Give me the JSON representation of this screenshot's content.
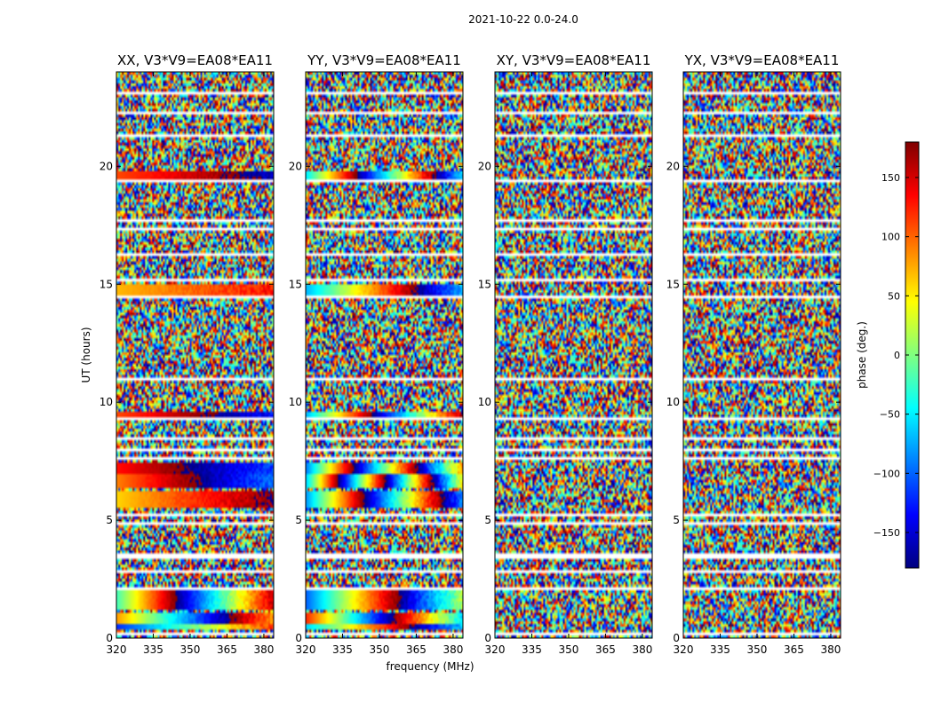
{
  "figure_title": "2021-10-22 0.0-24.0",
  "colors": {
    "background": "#ffffff",
    "axes": "#000000",
    "gap": "#ffffff"
  },
  "chart_data": {
    "type": "heatmap",
    "title": "2021-10-22 0.0-24.0",
    "colormap": "jet",
    "xlabel": "frequency (MHz)",
    "ylabel": "UT (hours)",
    "xlim": [
      320,
      384
    ],
    "ylim": [
      0,
      24
    ],
    "xticks": [
      320,
      335,
      350,
      365,
      380
    ],
    "yticks": [
      0,
      5,
      10,
      15,
      20
    ],
    "colorbar": {
      "label": "phase (deg.)",
      "range": [
        -180,
        180
      ],
      "ticks": [
        -150,
        -100,
        -50,
        0,
        50,
        100,
        150
      ]
    },
    "flagged_time_gaps_hours": [
      [
        0.15,
        0.22
      ],
      [
        0.55,
        0.62
      ],
      [
        1.18,
        1.22
      ],
      [
        2.05,
        2.12
      ],
      [
        2.35,
        2.45
      ],
      [
        2.75,
        2.85
      ],
      [
        3.4,
        3.55
      ],
      [
        4.85,
        4.95
      ],
      [
        5.2,
        5.28
      ],
      [
        6.3,
        6.38
      ],
      [
        7.55,
        7.65
      ],
      [
        7.95,
        8.05
      ],
      [
        8.35,
        8.5
      ],
      [
        9.2,
        9.3
      ],
      [
        10.95,
        11.05
      ],
      [
        12.7,
        12.78
      ],
      [
        14.4,
        14.52
      ],
      [
        15.1,
        15.2
      ],
      [
        16.25,
        16.3
      ],
      [
        17.3,
        17.38
      ],
      [
        17.62,
        17.72
      ],
      [
        18.6,
        18.65
      ],
      [
        19.3,
        19.42
      ],
      [
        19.88,
        19.92
      ],
      [
        21.3,
        21.38
      ],
      [
        22.2,
        22.3
      ],
      [
        23.1,
        23.2
      ]
    ],
    "panels": [
      {
        "title": "XX, V3*V9=EA08*EA11",
        "coherent_bands": [
          {
            "t0": 0.3,
            "t1": 0.55,
            "phase": -120,
            "slope": 40
          },
          {
            "t0": 0.62,
            "t1": 1.1,
            "phase": 80,
            "slope": -60
          },
          {
            "t0": 1.25,
            "t1": 2.0,
            "phase": -20,
            "slope": 90
          },
          {
            "t0": 5.5,
            "t1": 6.2,
            "phase": 60,
            "slope": 20
          },
          {
            "t0": 6.4,
            "t1": 6.9,
            "phase": 90,
            "slope": 30
          },
          {
            "t0": 6.9,
            "t1": 7.5,
            "phase": 130,
            "slope": 20
          },
          {
            "t0": 9.35,
            "t1": 9.55,
            "phase": 110,
            "slope": 20
          },
          {
            "t0": 14.55,
            "t1": 15.05,
            "phase": 70,
            "slope": 10
          },
          {
            "t0": 19.45,
            "t1": 19.85,
            "phase": 110,
            "slope": 15
          }
        ]
      },
      {
        "title": "YY, V3*V9=EA08*EA11",
        "coherent_bands": [
          {
            "t0": 0.3,
            "t1": 0.55,
            "phase": -60,
            "slope": 60
          },
          {
            "t0": 0.62,
            "t1": 1.1,
            "phase": 120,
            "slope": -90
          },
          {
            "t0": 1.25,
            "t1": 2.0,
            "phase": -100,
            "slope": 80
          },
          {
            "t0": 5.5,
            "t1": 6.2,
            "phase": -80,
            "slope": 120
          },
          {
            "t0": 6.4,
            "t1": 6.9,
            "phase": -60,
            "slope": 200
          },
          {
            "t0": 6.9,
            "t1": 7.5,
            "phase": -90,
            "slope": 150
          },
          {
            "t0": 9.35,
            "t1": 9.55,
            "phase": -70,
            "slope": 100
          },
          {
            "t0": 14.55,
            "t1": 15.05,
            "phase": -70,
            "slope": 60
          },
          {
            "t0": 19.45,
            "t1": 19.85,
            "phase": -50,
            "slope": 120
          }
        ]
      },
      {
        "title": "XY, V3*V9=EA08*EA11",
        "coherent_bands": []
      },
      {
        "title": "YX, V3*V9=EA08*EA11",
        "coherent_bands": []
      }
    ]
  }
}
